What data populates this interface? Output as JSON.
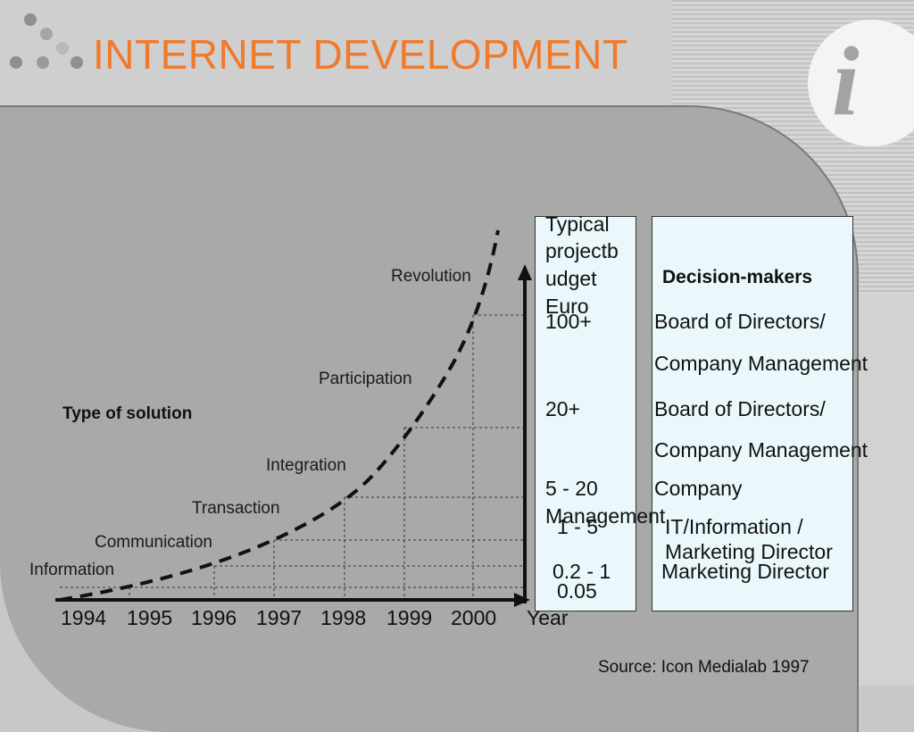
{
  "title": "INTERNET DEVELOPMENT",
  "logo": {
    "glyph": "i"
  },
  "y_axis_label": "Type of solution",
  "x_axis_label": "Year",
  "years": [
    "1994",
    "1995",
    "1996",
    "1997",
    "1998",
    "1999",
    "2000"
  ],
  "solution_types": [
    "Information",
    "Communication",
    "Transaction",
    "Integration",
    "Participation",
    "Revolution"
  ],
  "budget_header": [
    "Typical",
    "projectb",
    "udget",
    "Euro"
  ],
  "decision_header": "Decision-makers",
  "rows": [
    {
      "budget": "100+",
      "decision": [
        "Board of Directors/",
        "Company Management"
      ]
    },
    {
      "budget": "20+",
      "decision": [
        "Board of Directors/",
        "Company Management"
      ]
    },
    {
      "budget": "5 - 20",
      "decision": [
        "Company",
        "Management"
      ]
    },
    {
      "budget": "1 - 5",
      "decision": [
        "IT/Information /",
        "Marketing Director"
      ]
    },
    {
      "budget": "0.2 - 1",
      "decision": [
        "Marketing Director"
      ]
    },
    {
      "budget": "0.05",
      "decision": []
    }
  ],
  "source": "Source: Icon Medialab 1997",
  "colors": {
    "title": "#f07a2a",
    "panel": "#a9a9a9",
    "table_bg": "#eaf8fc"
  }
}
